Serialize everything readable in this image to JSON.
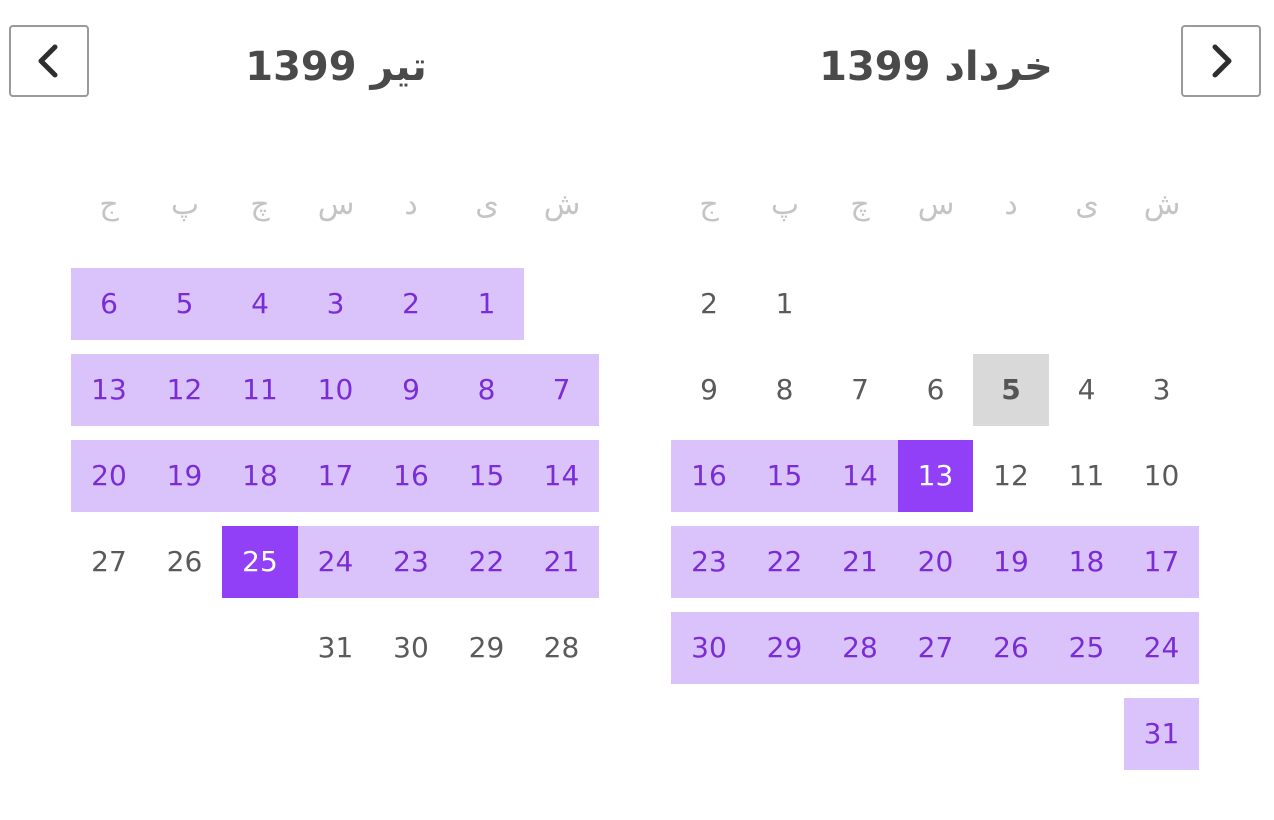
{
  "navigation": {
    "prev_icon": "chevron-left-icon",
    "next_icon": "chevron-right-icon"
  },
  "weekdays": [
    "ش",
    "ی",
    "د",
    "س",
    "چ",
    "پ",
    "ج"
  ],
  "colors": {
    "range": "#dac3fb",
    "range_text": "#7a2cd6",
    "selected": "#9140f7",
    "today": "#d9d9d9"
  },
  "months": [
    {
      "title": "خرداد 1399",
      "start_weekday": 5,
      "days": 31,
      "today": 5,
      "selected": [
        13
      ],
      "range": [
        13,
        31
      ]
    },
    {
      "title": "تیر 1399",
      "start_weekday": 1,
      "days": 31,
      "today": null,
      "selected": [
        25
      ],
      "range": [
        1,
        25
      ]
    }
  ]
}
